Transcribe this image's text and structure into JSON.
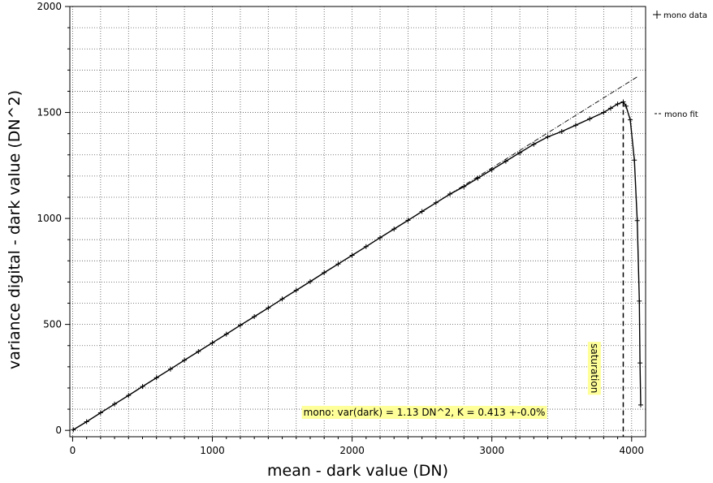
{
  "chart_data": {
    "type": "scatter",
    "title": "",
    "xlabel": "mean - dark value (DN)",
    "ylabel": "variance digital - dark value (DN^2)",
    "xlim": [
      -20,
      4100
    ],
    "ylim": [
      -30,
      2000
    ],
    "xticks": [
      0,
      1000,
      2000,
      3000,
      4000
    ],
    "yticks": [
      0,
      500,
      1000,
      1500,
      2000
    ],
    "grid": true,
    "legend_position": "right",
    "series": [
      {
        "name": "mono data",
        "marker": "+",
        "color": "#000000",
        "x": [
          5,
          100,
          200,
          300,
          400,
          500,
          600,
          700,
          800,
          900,
          1000,
          1100,
          1200,
          1300,
          1400,
          1500,
          1600,
          1700,
          1800,
          1900,
          2000,
          2100,
          2200,
          2300,
          2400,
          2500,
          2600,
          2700,
          2800,
          2900,
          3000,
          3100,
          3200,
          3300,
          3400,
          3500,
          3600,
          3700,
          3800,
          3850,
          3900,
          3940,
          3960,
          3990,
          4020,
          4040,
          4055,
          4060,
          4065
        ],
        "y": [
          3,
          41,
          83,
          124,
          165,
          207,
          248,
          289,
          331,
          372,
          413,
          454,
          496,
          537,
          578,
          620,
          661,
          702,
          744,
          785,
          826,
          867,
          909,
          950,
          991,
          1033,
          1074,
          1115,
          1150,
          1190,
          1230,
          1270,
          1310,
          1350,
          1385,
          1410,
          1440,
          1470,
          1500,
          1520,
          1540,
          1550,
          1530,
          1465,
          1275,
          990,
          610,
          318,
          120
        ]
      },
      {
        "name": "mono fit",
        "style": "dash-dot",
        "color": "#000000",
        "x": [
          0,
          4040
        ],
        "y": [
          0,
          1668
        ]
      }
    ],
    "annotations": [
      {
        "text": "mono: var(dark) = 1.13 DN^2, K = 0.413 +-0.0%",
        "x": 1640,
        "y": 85,
        "background": "#ffff99"
      },
      {
        "text": "saturation",
        "x": 3710,
        "y": 410,
        "rotation": 90,
        "background": "#ffff99"
      }
    ],
    "saturation_line": {
      "x": 3940,
      "y_top": 1550
    }
  }
}
